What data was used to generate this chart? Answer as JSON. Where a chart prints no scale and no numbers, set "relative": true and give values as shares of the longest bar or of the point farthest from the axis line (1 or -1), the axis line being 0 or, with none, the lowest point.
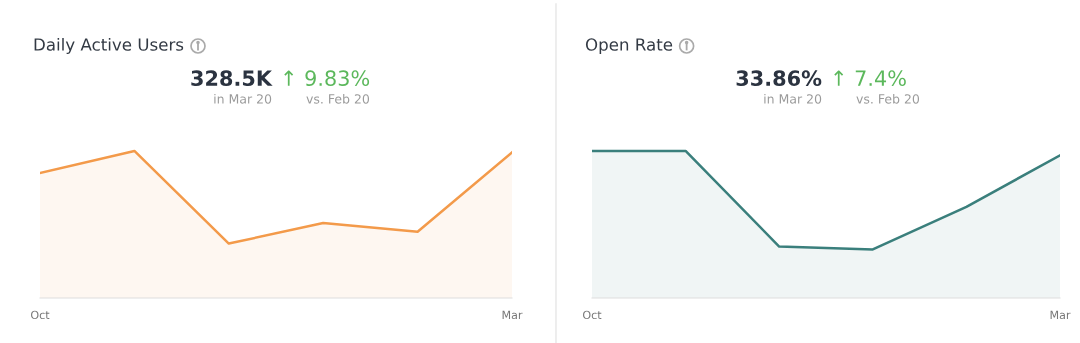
{
  "chart_data": [
    {
      "type": "area",
      "title": "Daily Active Users",
      "categories": [
        "Oct",
        null,
        null,
        null,
        null,
        "Mar"
      ],
      "relative": true,
      "grid": false,
      "legend": false,
      "series": [
        {
          "color": "#f39a4a",
          "values": [
            0.85,
            1,
            0.37,
            0.51,
            0.45,
            0.99
          ]
        }
      ],
      "annotations": [
        "328.5K",
        "↑ 9.83%",
        "in Mar 20",
        "vs. Feb 20"
      ]
    },
    {
      "type": "area",
      "title": "Open Rate",
      "categories": [
        "Oct",
        null,
        null,
        null,
        null,
        "Mar"
      ],
      "relative": true,
      "grid": false,
      "legend": false,
      "series": [
        {
          "color": "#3a7f7c",
          "values": [
            1,
            1,
            0.35,
            0.33,
            0.62,
            0.97
          ]
        }
      ],
      "annotations": [
        "33.86%",
        "↑ 7.4%",
        "in Mar 20",
        "vs. Feb 20"
      ]
    }
  ]
}
